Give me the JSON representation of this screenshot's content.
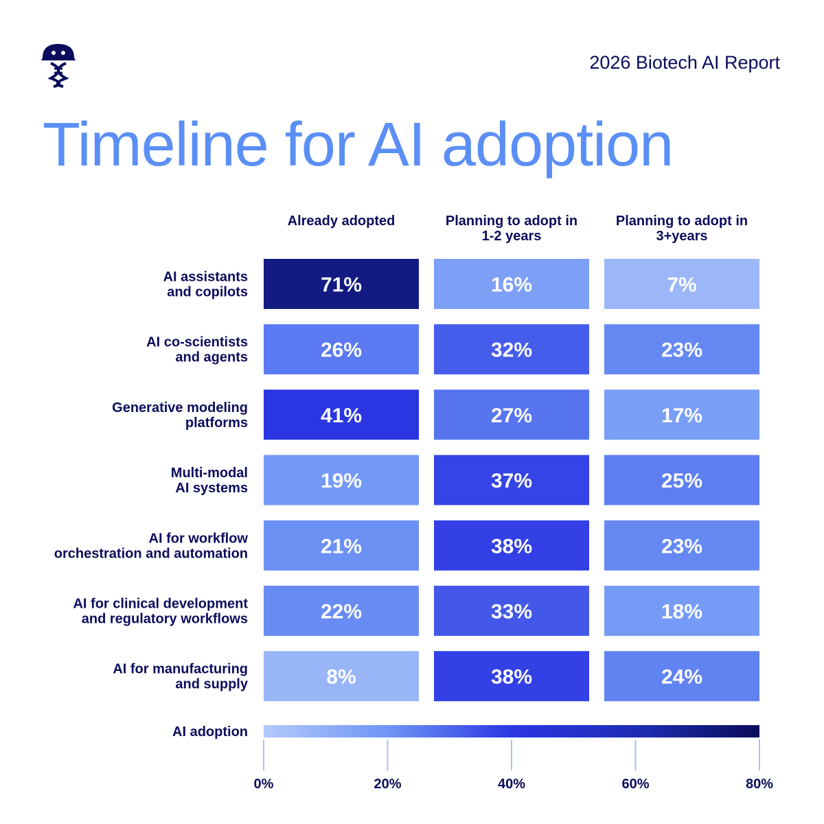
{
  "header": {
    "report_label": "2026 Biotech AI Report",
    "logo_icon": "helmet-dna-icon"
  },
  "title": "Timeline for AI adoption",
  "chart_data": {
    "type": "heatmap",
    "title": "Timeline for AI adoption",
    "columns": [
      [
        "Already adopted"
      ],
      [
        "Planning to adopt in",
        "1-2 years"
      ],
      [
        "Planning to adopt in",
        "3+years"
      ]
    ],
    "rows": [
      {
        "label": [
          "AI assistants",
          "and copilots"
        ],
        "values": [
          71,
          16,
          7
        ]
      },
      {
        "label": [
          "AI co-scientists",
          "and agents"
        ],
        "values": [
          26,
          32,
          23
        ]
      },
      {
        "label": [
          "Generative modeling",
          "platforms"
        ],
        "values": [
          41,
          27,
          17
        ]
      },
      {
        "label": [
          "Multi-modal",
          "AI systems"
        ],
        "values": [
          19,
          37,
          25
        ]
      },
      {
        "label": [
          "AI for workflow",
          "orchestration and automation"
        ],
        "values": [
          21,
          38,
          23
        ]
      },
      {
        "label": [
          "AI for clinical development",
          "and regulatory workflows"
        ],
        "values": [
          22,
          33,
          18
        ]
      },
      {
        "label": [
          "AI for manufacturing",
          "and supply"
        ],
        "values": [
          8,
          38,
          24
        ]
      }
    ],
    "unit": "%",
    "color_scale": {
      "label": "AI adoption",
      "min": 0,
      "max": 80,
      "ticks": [
        0,
        20,
        40,
        60,
        80
      ],
      "tick_labels": [
        "0%",
        "20%",
        "40%",
        "60%",
        "80%"
      ],
      "stops": [
        {
          "value": 0,
          "color": "#b3c9fa"
        },
        {
          "value": 20,
          "color": "#6f96f5"
        },
        {
          "value": 40,
          "color": "#2b36e3"
        },
        {
          "value": 60,
          "color": "#1e2db5"
        },
        {
          "value": 80,
          "color": "#0a0d5a"
        }
      ]
    }
  }
}
